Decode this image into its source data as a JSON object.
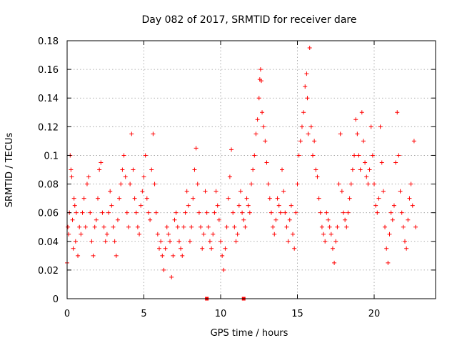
{
  "chart_data": {
    "type": "scatter",
    "title": "Day 082 of 2017, SRMTID for receiver dare",
    "xlabel": "GPS time / hours",
    "ylabel": "SRMTID / TECUs",
    "xlim": [
      0,
      24
    ],
    "ylim": [
      0,
      0.18
    ],
    "x_ticks": [
      0,
      5,
      10,
      15,
      20
    ],
    "y_ticks": [
      0,
      0.02,
      0.04,
      0.06,
      0.08,
      0.1,
      0.12,
      0.14,
      0.16,
      0.18
    ],
    "y_tick_labels": [
      "0",
      "0.02",
      "0.04",
      "0.06",
      "0.08",
      "0.1",
      "0.12",
      "0.14",
      "0.16",
      "0.18"
    ],
    "grid": true,
    "marker": "+",
    "color": "#ff0000",
    "series": [
      {
        "name": "SRMTID",
        "points": [
          [
            0.0,
            0.025
          ],
          [
            0.05,
            0.05
          ],
          [
            0.1,
            0.045
          ],
          [
            0.15,
            0.06
          ],
          [
            0.2,
            0.1
          ],
          [
            0.25,
            0.09
          ],
          [
            0.3,
            0.085
          ],
          [
            0.35,
            0.055
          ],
          [
            0.4,
            0.035
          ],
          [
            0.45,
            0.07
          ],
          [
            0.5,
            0.065
          ],
          [
            0.55,
            0.04
          ],
          [
            0.6,
            0.06
          ],
          [
            0.7,
            0.03
          ],
          [
            0.8,
            0.05
          ],
          [
            0.9,
            0.045
          ],
          [
            1.0,
            0.06
          ],
          [
            1.1,
            0.07
          ],
          [
            1.2,
            0.05
          ],
          [
            1.3,
            0.08
          ],
          [
            1.4,
            0.085
          ],
          [
            1.5,
            0.06
          ],
          [
            1.6,
            0.04
          ],
          [
            1.7,
            0.03
          ],
          [
            1.8,
            0.05
          ],
          [
            1.9,
            0.055
          ],
          [
            2.0,
            0.07
          ],
          [
            2.1,
            0.09
          ],
          [
            2.2,
            0.095
          ],
          [
            2.3,
            0.06
          ],
          [
            2.4,
            0.05
          ],
          [
            2.5,
            0.04
          ],
          [
            2.6,
            0.045
          ],
          [
            2.7,
            0.06
          ],
          [
            2.8,
            0.075
          ],
          [
            2.9,
            0.065
          ],
          [
            3.0,
            0.05
          ],
          [
            3.1,
            0.04
          ],
          [
            3.2,
            0.03
          ],
          [
            3.3,
            0.055
          ],
          [
            3.4,
            0.07
          ],
          [
            3.5,
            0.08
          ],
          [
            3.6,
            0.09
          ],
          [
            3.7,
            0.1
          ],
          [
            3.8,
            0.085
          ],
          [
            3.9,
            0.06
          ],
          [
            4.0,
            0.05
          ],
          [
            4.1,
            0.08
          ],
          [
            4.2,
            0.115
          ],
          [
            4.3,
            0.09
          ],
          [
            4.4,
            0.07
          ],
          [
            4.5,
            0.06
          ],
          [
            4.6,
            0.05
          ],
          [
            4.7,
            0.045
          ],
          [
            4.8,
            0.065
          ],
          [
            4.9,
            0.075
          ],
          [
            5.0,
            0.085
          ],
          [
            5.1,
            0.1
          ],
          [
            5.2,
            0.07
          ],
          [
            5.3,
            0.06
          ],
          [
            5.4,
            0.055
          ],
          [
            5.5,
            0.09
          ],
          [
            5.6,
            0.115
          ],
          [
            5.7,
            0.08
          ],
          [
            5.8,
            0.06
          ],
          [
            5.9,
            0.045
          ],
          [
            6.0,
            0.035
          ],
          [
            6.1,
            0.04
          ],
          [
            6.2,
            0.03
          ],
          [
            6.3,
            0.02
          ],
          [
            6.4,
            0.035
          ],
          [
            6.5,
            0.05
          ],
          [
            6.6,
            0.045
          ],
          [
            6.7,
            0.04
          ],
          [
            6.8,
            0.015
          ],
          [
            6.9,
            0.03
          ],
          [
            7.0,
            0.055
          ],
          [
            7.1,
            0.06
          ],
          [
            7.2,
            0.05
          ],
          [
            7.3,
            0.04
          ],
          [
            7.4,
            0.035
          ],
          [
            7.5,
            0.03
          ],
          [
            7.6,
            0.05
          ],
          [
            7.7,
            0.06
          ],
          [
            7.8,
            0.075
          ],
          [
            7.9,
            0.065
          ],
          [
            8.0,
            0.04
          ],
          [
            8.1,
            0.05
          ],
          [
            8.2,
            0.07
          ],
          [
            8.3,
            0.09
          ],
          [
            8.4,
            0.105
          ],
          [
            8.5,
            0.08
          ],
          [
            8.6,
            0.06
          ],
          [
            8.7,
            0.05
          ],
          [
            8.8,
            0.035
          ],
          [
            8.9,
            0.045
          ],
          [
            9.0,
            0.075
          ],
          [
            9.1,
            0.06
          ],
          [
            9.2,
            0.05
          ],
          [
            9.3,
            0.04
          ],
          [
            9.4,
            0.035
          ],
          [
            9.5,
            0.045
          ],
          [
            9.6,
            0.06
          ],
          [
            9.7,
            0.075
          ],
          [
            9.8,
            0.065
          ],
          [
            9.9,
            0.055
          ],
          [
            10.0,
            0.04
          ],
          [
            10.1,
            0.03
          ],
          [
            10.2,
            0.02
          ],
          [
            10.3,
            0.035
          ],
          [
            10.4,
            0.05
          ],
          [
            10.5,
            0.07
          ],
          [
            10.6,
            0.085
          ],
          [
            10.7,
            0.104
          ],
          [
            10.8,
            0.06
          ],
          [
            10.9,
            0.05
          ],
          [
            11.0,
            0.04
          ],
          [
            11.1,
            0.045
          ],
          [
            11.2,
            0.065
          ],
          [
            11.3,
            0.075
          ],
          [
            11.4,
            0.06
          ],
          [
            11.5,
            0.055
          ],
          [
            11.6,
            0.05
          ],
          [
            11.7,
            0.07
          ],
          [
            11.8,
            0.065
          ],
          [
            11.9,
            0.06
          ],
          [
            12.0,
            0.08
          ],
          [
            12.1,
            0.09
          ],
          [
            12.2,
            0.1
          ],
          [
            12.3,
            0.115
          ],
          [
            12.4,
            0.125
          ],
          [
            12.5,
            0.14
          ],
          [
            12.55,
            0.153
          ],
          [
            12.6,
            0.16
          ],
          [
            12.65,
            0.152
          ],
          [
            12.7,
            0.13
          ],
          [
            12.8,
            0.12
          ],
          [
            12.9,
            0.11
          ],
          [
            13.0,
            0.095
          ],
          [
            13.1,
            0.08
          ],
          [
            13.2,
            0.07
          ],
          [
            13.3,
            0.06
          ],
          [
            13.4,
            0.05
          ],
          [
            13.5,
            0.045
          ],
          [
            13.6,
            0.055
          ],
          [
            13.7,
            0.07
          ],
          [
            13.8,
            0.065
          ],
          [
            13.9,
            0.06
          ],
          [
            14.0,
            0.09
          ],
          [
            14.1,
            0.075
          ],
          [
            14.2,
            0.06
          ],
          [
            14.3,
            0.05
          ],
          [
            14.4,
            0.04
          ],
          [
            14.5,
            0.055
          ],
          [
            14.6,
            0.065
          ],
          [
            14.7,
            0.045
          ],
          [
            14.8,
            0.035
          ],
          [
            14.9,
            0.06
          ],
          [
            15.0,
            0.08
          ],
          [
            15.1,
            0.1
          ],
          [
            15.2,
            0.11
          ],
          [
            15.3,
            0.12
          ],
          [
            15.4,
            0.13
          ],
          [
            15.5,
            0.148
          ],
          [
            15.6,
            0.157
          ],
          [
            15.65,
            0.14
          ],
          [
            15.7,
            0.115
          ],
          [
            15.8,
            0.175
          ],
          [
            15.9,
            0.12
          ],
          [
            16.0,
            0.1
          ],
          [
            16.1,
            0.11
          ],
          [
            16.2,
            0.09
          ],
          [
            16.3,
            0.085
          ],
          [
            16.4,
            0.07
          ],
          [
            16.5,
            0.06
          ],
          [
            16.6,
            0.05
          ],
          [
            16.7,
            0.045
          ],
          [
            16.8,
            0.04
          ],
          [
            16.9,
            0.06
          ],
          [
            17.0,
            0.055
          ],
          [
            17.1,
            0.05
          ],
          [
            17.2,
            0.045
          ],
          [
            17.3,
            0.035
          ],
          [
            17.4,
            0.025
          ],
          [
            17.5,
            0.04
          ],
          [
            17.6,
            0.05
          ],
          [
            17.7,
            0.08
          ],
          [
            17.8,
            0.115
          ],
          [
            17.9,
            0.075
          ],
          [
            18.0,
            0.06
          ],
          [
            18.1,
            0.055
          ],
          [
            18.2,
            0.05
          ],
          [
            18.3,
            0.06
          ],
          [
            18.4,
            0.07
          ],
          [
            18.5,
            0.08
          ],
          [
            18.6,
            0.09
          ],
          [
            18.7,
            0.1
          ],
          [
            18.8,
            0.125
          ],
          [
            18.9,
            0.115
          ],
          [
            19.0,
            0.1
          ],
          [
            19.1,
            0.09
          ],
          [
            19.2,
            0.13
          ],
          [
            19.3,
            0.11
          ],
          [
            19.4,
            0.095
          ],
          [
            19.5,
            0.085
          ],
          [
            19.6,
            0.08
          ],
          [
            19.7,
            0.09
          ],
          [
            19.8,
            0.12
          ],
          [
            19.9,
            0.1
          ],
          [
            20.0,
            0.08
          ],
          [
            20.1,
            0.065
          ],
          [
            20.2,
            0.06
          ],
          [
            20.3,
            0.07
          ],
          [
            20.4,
            0.12
          ],
          [
            20.5,
            0.095
          ],
          [
            20.6,
            0.075
          ],
          [
            20.7,
            0.05
          ],
          [
            20.8,
            0.035
          ],
          [
            20.9,
            0.025
          ],
          [
            21.0,
            0.045
          ],
          [
            21.1,
            0.06
          ],
          [
            21.2,
            0.055
          ],
          [
            21.3,
            0.065
          ],
          [
            21.4,
            0.095
          ],
          [
            21.5,
            0.13
          ],
          [
            21.6,
            0.1
          ],
          [
            21.7,
            0.075
          ],
          [
            21.8,
            0.06
          ],
          [
            21.9,
            0.05
          ],
          [
            22.0,
            0.04
          ],
          [
            22.1,
            0.035
          ],
          [
            22.2,
            0.055
          ],
          [
            22.3,
            0.07
          ],
          [
            22.4,
            0.08
          ],
          [
            22.5,
            0.065
          ],
          [
            22.6,
            0.11
          ],
          [
            22.7,
            0.05
          ]
        ]
      }
    ],
    "annotations": [
      {
        "type": "square-marker",
        "x": 9.1,
        "y": 0.0
      },
      {
        "type": "square-marker",
        "x": 11.5,
        "y": 0.0
      }
    ]
  }
}
